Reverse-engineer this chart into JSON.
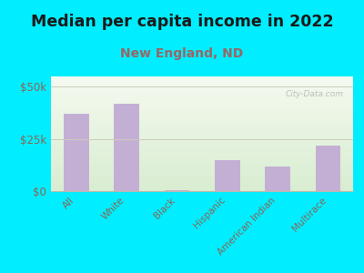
{
  "title": "Median per capita income in 2022",
  "subtitle": "New England, ND",
  "categories": [
    "All",
    "White",
    "Black",
    "Hispanic",
    "American Indian",
    "Multirace"
  ],
  "values": [
    37000,
    42000,
    500,
    15000,
    12000,
    22000
  ],
  "bar_color": "#c4afd4",
  "title_fontsize": 12.5,
  "subtitle_fontsize": 10,
  "subtitle_color": "#996666",
  "tick_label_color": "#886655",
  "ytick_labels": [
    "$0",
    "$25k",
    "$50k"
  ],
  "ytick_values": [
    0,
    25000,
    50000
  ],
  "ylim": [
    0,
    55000
  ],
  "background_outer": "#00eeff",
  "background_inner_topleft": "#e8f0e0",
  "background_inner_topright": "#f5f8ee",
  "background_inner_bottom": "#ddeedd",
  "watermark": "City-Data.com",
  "grid_color": "#ccccbb",
  "title_color": "#1a1a1a"
}
